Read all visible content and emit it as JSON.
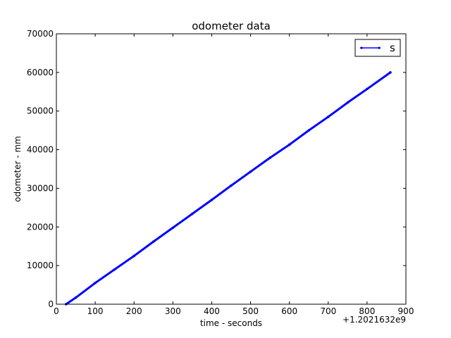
{
  "chart_data": {
    "type": "line",
    "title": "odometer data",
    "xlabel": "time - seconds",
    "ylabel": "odometer - mm",
    "x_offset_label": "+1.2021632e9",
    "xlim": [
      0,
      900
    ],
    "ylim": [
      0,
      70000
    ],
    "xticks": [
      0,
      100,
      200,
      300,
      400,
      500,
      600,
      700,
      800,
      900
    ],
    "yticks": [
      0,
      10000,
      20000,
      30000,
      40000,
      50000,
      60000,
      70000
    ],
    "grid": false,
    "legend_position": "top-right",
    "series": [
      {
        "name": "s",
        "color": "#0000ff",
        "marker": "point",
        "x": [
          25,
          50,
          100,
          150,
          200,
          250,
          300,
          350,
          400,
          450,
          500,
          550,
          600,
          650,
          700,
          750,
          800,
          860
        ],
        "y": [
          0,
          1700,
          5500,
          9000,
          12500,
          16200,
          19800,
          23400,
          27000,
          30700,
          34300,
          37900,
          41300,
          45000,
          48500,
          52200,
          55700,
          60000
        ]
      }
    ]
  }
}
